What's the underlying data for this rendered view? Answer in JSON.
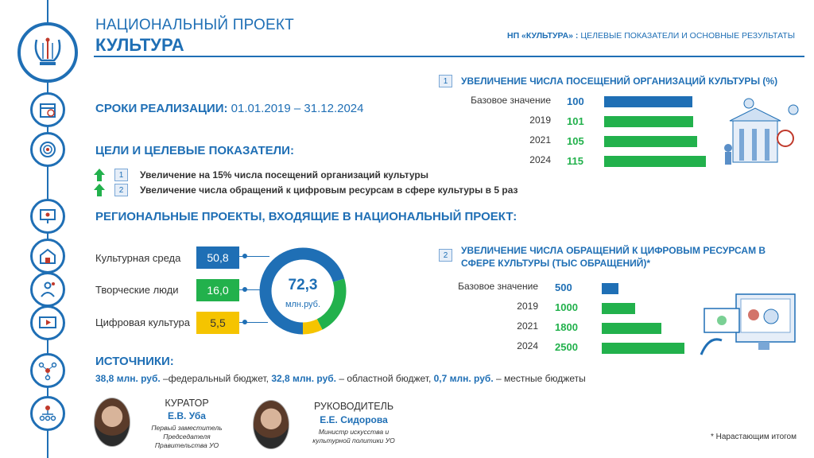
{
  "header": {
    "title_line1": "НАЦИОНАЛЬНЫЙ ПРОЕКТ",
    "title_line2": "КУЛЬТУРА",
    "right_bold": "НП «КУЛЬТУРА» :",
    "right_rest": " ЦЕЛЕВЫЕ ПОКАЗАТЕЛИ И ОСНОВНЫЕ РЕЗУЛЬТАТЫ"
  },
  "terms": {
    "label": "СРОКИ РЕАЛИЗАЦИИ:",
    "value": "01.01.2019 – 31.12.2024"
  },
  "goals": {
    "heading": "ЦЕЛИ И ЦЕЛЕВЫЕ ПОКАЗАТЕЛИ:",
    "items": [
      {
        "num": "1",
        "text": "Увеличение на 15% числа посещений организаций культуры"
      },
      {
        "num": "2",
        "text": "Увеличение числа обращений к цифровым ресурсам в сфере культуры в 5 раз"
      }
    ]
  },
  "regional": {
    "heading": "РЕГИОНАЛЬНЫЕ  ПРОЕКТЫ, ВХОДЯЩИЕ В НАЦИОНАЛЬНЫЙ ПРОЕКТ:",
    "total": "72,3",
    "unit": "млн.руб.",
    "colors": [
      "#1f6fb5",
      "#22b14c",
      "#f5c400"
    ]
  },
  "sources": {
    "heading": "ИСТОЧНИКИ:",
    "federal_amount": "38,8 млн. руб.",
    "federal_text": " –федеральный бюджет, ",
    "regional_amount": "32,8 млн. руб.",
    "regional_text": " – областной бюджет, ",
    "local_amount": "0,7 млн. руб.",
    "local_text": " – местные бюджеты"
  },
  "curator": {
    "role": "КУРАТОР",
    "name": "Е.В. Уба",
    "title": "Первый заместитель Председателя Правительства УО"
  },
  "leader": {
    "role": "РУКОВОДИТЕЛЬ",
    "name": "Е.Е. Сидорова",
    "title": "Министр искусства и культурной политики УО"
  },
  "kpi1": {
    "num": "1",
    "title": "УВЕЛИЧЕНИЕ ЧИСЛА ПОСЕЩЕНИЙ ОРГАНИЗАЦИЙ КУЛЬТУРЫ (%)"
  },
  "kpi2": {
    "num": "2",
    "title": "УВЕЛИЧЕНИЕ ЧИСЛА ОБРАЩЕНИЙ К ЦИФРОВЫМ РЕСУРСАМ В СФЕРЕ КУЛЬТУРЫ (ТЫС ОБРАЩЕНИЙ)*"
  },
  "footnote": "* Нарастающим итогом",
  "chart_data": [
    {
      "type": "pie",
      "categories": [
        "Культурная среда",
        "Творческие люди",
        "Цифровая культура"
      ],
      "values": [
        50.8,
        16.0,
        5.5
      ],
      "labels": [
        "50,8",
        "16,0",
        "5,5"
      ]
    },
    {
      "type": "bar",
      "title": "УВЕЛИЧЕНИЕ ЧИСЛА ПОСЕЩЕНИЙ ОРГАНИЗАЦИЙ КУЛЬТУРЫ (%)",
      "categories": [
        "Базовое значение",
        "2019",
        "2021",
        "2024"
      ],
      "values": [
        100,
        101,
        105,
        115
      ],
      "labels": [
        "100",
        "101",
        "105",
        "115"
      ],
      "colors": [
        "#1f6fb5",
        "#22b14c",
        "#22b14c",
        "#22b14c"
      ]
    },
    {
      "type": "bar",
      "title": "УВЕЛИЧЕНИЕ ЧИСЛА ОБРАЩЕНИЙ К ЦИФРОВЫМ РЕСУРСАМ В СФЕРЕ КУЛЬТУРЫ (ТЫС ОБРАЩЕНИЙ)*",
      "categories": [
        "Базовое значение",
        "2019",
        "2021",
        "2024"
      ],
      "values": [
        500,
        1000,
        1800,
        2500
      ],
      "labels": [
        "500",
        "1000",
        "1800",
        "2500"
      ],
      "colors": [
        "#1f6fb5",
        "#22b14c",
        "#22b14c",
        "#22b14c"
      ]
    }
  ]
}
